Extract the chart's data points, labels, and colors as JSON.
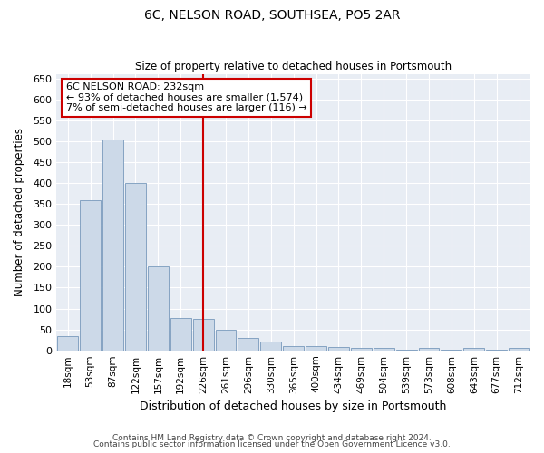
{
  "title": "6C, NELSON ROAD, SOUTHSEA, PO5 2AR",
  "subtitle": "Size of property relative to detached houses in Portsmouth",
  "xlabel": "Distribution of detached houses by size in Portsmouth",
  "ylabel": "Number of detached properties",
  "bar_color": "#ccd9e8",
  "bar_edge_color": "#7799bb",
  "background_color": "#e8edf4",
  "grid_color": "#ffffff",
  "vline_color": "#cc0000",
  "annotation_text": "6C NELSON ROAD: 232sqm\n← 93% of detached houses are smaller (1,574)\n7% of semi-detached houses are larger (116) →",
  "annotation_box_color": "#ffffff",
  "annotation_box_edge": "#cc0000",
  "footnote1": "Contains HM Land Registry data © Crown copyright and database right 2024.",
  "footnote2": "Contains public sector information licensed under the Open Government Licence v3.0.",
  "categories": [
    "18sqm",
    "53sqm",
    "87sqm",
    "122sqm",
    "157sqm",
    "192sqm",
    "226sqm",
    "261sqm",
    "296sqm",
    "330sqm",
    "365sqm",
    "400sqm",
    "434sqm",
    "469sqm",
    "504sqm",
    "539sqm",
    "573sqm",
    "608sqm",
    "643sqm",
    "677sqm",
    "712sqm"
  ],
  "values": [
    35,
    358,
    505,
    400,
    200,
    78,
    75,
    50,
    30,
    20,
    10,
    10,
    8,
    5,
    5,
    2,
    5,
    2,
    5,
    2,
    5
  ],
  "ylim": [
    0,
    660
  ],
  "yticks": [
    0,
    50,
    100,
    150,
    200,
    250,
    300,
    350,
    400,
    450,
    500,
    550,
    600,
    650
  ],
  "vline_bar_idx": 6,
  "fig_width": 6.0,
  "fig_height": 5.0,
  "fig_bg": "#ffffff"
}
